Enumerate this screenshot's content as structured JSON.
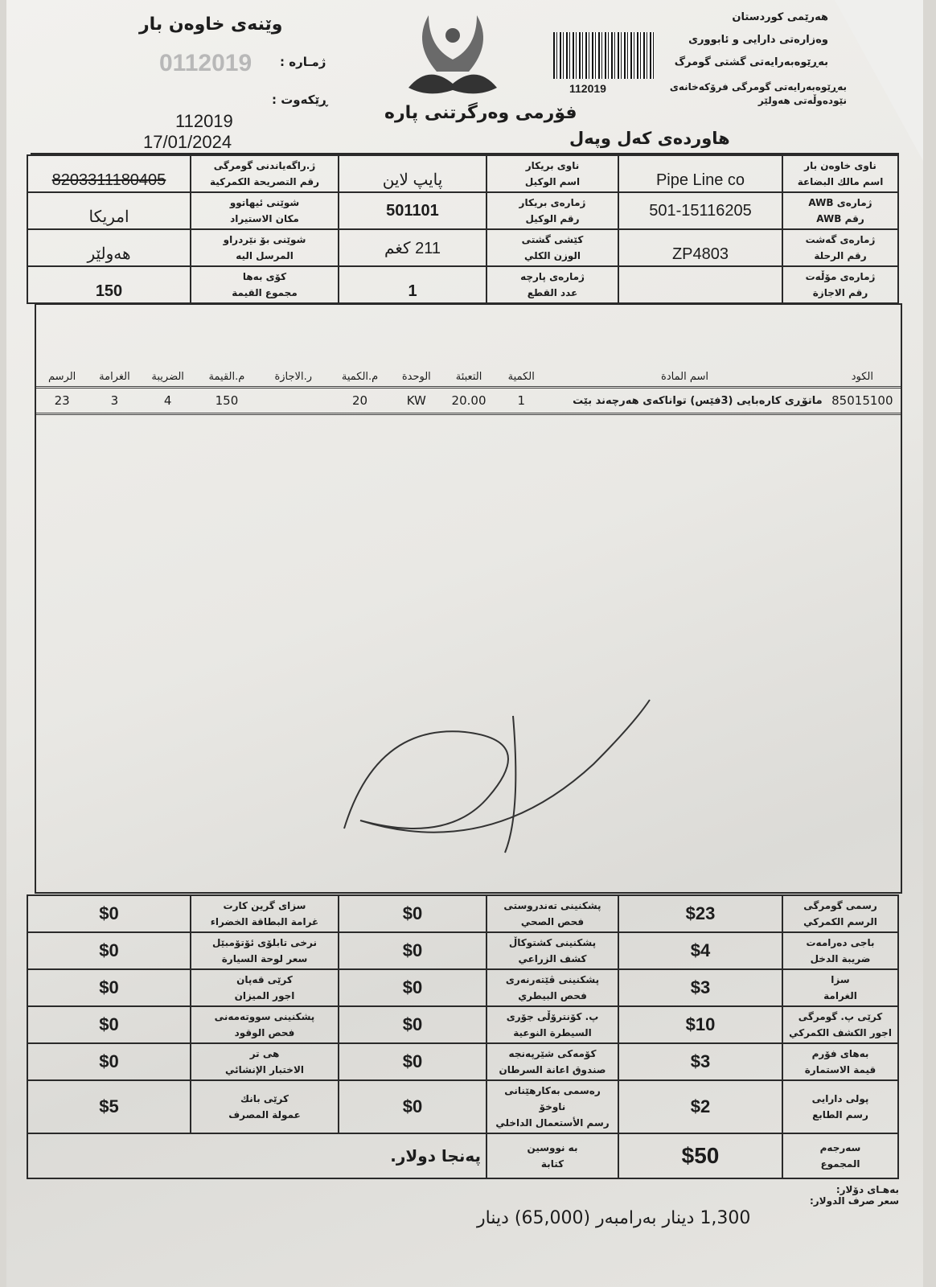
{
  "header": {
    "left_title": "وێنەی خاوەن بار",
    "number_label": "ژمـارە :",
    "number_value": "0112019",
    "date_label": "ڕێکەوت :",
    "ref_number": "112019",
    "date": "17/01/2024",
    "form_title": "فۆرمی وەرگرتنی پارە",
    "subtitle": "هاوردەی کەل وپەل",
    "barcode_number": "112019",
    "org_lines": [
      "هەرێمی کوردستان",
      "وەزارەتی دارایی و ئابووری",
      "بەڕێوەبەرایەتی گشتی گومرگ",
      "بەڕێوەبەرایەتی گومرگی فرۆکەخانەی نێودەوڵەتی هەولێر"
    ]
  },
  "info": {
    "owner": {
      "ku": "ناوی خاوەن بار",
      "ar": "اسم مالك البضاعة",
      "value": "Pipe Line co"
    },
    "awb": {
      "ku": "ژمارەی AWB",
      "ar": "رقم AWB",
      "value": "501-15116205"
    },
    "flight": {
      "ku": "ژمارەی گەشت",
      "ar": "رقم الرحلة",
      "value": "ZP4803"
    },
    "license": {
      "ku": "ژمارەی مۆڵەت",
      "ar": "رقم الاجازة",
      "value": ""
    },
    "agent": {
      "ku": "ناوی بریکار",
      "ar": "اسم الوكيل",
      "value": "پایپ لاین"
    },
    "agent_no": {
      "ku": "ژمارەی بریکار",
      "ar": "رقم الوكيل",
      "value": "501101"
    },
    "weight": {
      "ku": "کێشی گشتی",
      "ar": "الوزن الكلي",
      "value": "211 کغم"
    },
    "pieces": {
      "ku": "ژمارەی پارچە",
      "ar": "عدد القطع",
      "value": "1"
    },
    "declaration": {
      "ku": "ژ.راگەیاندنی گومرگی",
      "ar": "رقم التصريحة الكمركية",
      "value": "8203311180405"
    },
    "origin": {
      "ku": "شوێنی ئیهاتوو",
      "ar": "مكان الاستيراد",
      "value": "امریکا"
    },
    "destination": {
      "ku": "شوێنی بۆ نێردراو",
      "ar": "المرسل اليه",
      "value": "هەولێر"
    },
    "total_value": {
      "ku": "کۆی بەها",
      "ar": "مجموع القيمة",
      "value": "150"
    }
  },
  "items": {
    "headers": [
      "الكود",
      "اسم المادة",
      "الكمية",
      "التعبئة",
      "الوحدة",
      "م.الكمية",
      "ر.الاجازة",
      "م.القيمة",
      "الضريبة",
      "الغرامة",
      "الرسم"
    ],
    "rows": [
      [
        "85015100",
        "ماتۆڕی کارەبایی (3فێس) تواناکەی هەرچەند بێت",
        "1",
        "20.00",
        "KW",
        "20",
        "",
        "150",
        "4",
        "3",
        "23"
      ]
    ]
  },
  "fees": [
    [
      {
        "ku": "رسمی گومرگی",
        "ar": "الرسم الكمركي",
        "v": "$23"
      },
      {
        "ku": "پشکنینی تەندروستی",
        "ar": "فحص الصحي",
        "v": "$0"
      },
      {
        "ku": "سزای گرین کارت",
        "ar": "غرامة البطاقة الخضراء",
        "v": "$0"
      }
    ],
    [
      {
        "ku": "باجی دەرامەت",
        "ar": "ضريبة الدخل",
        "v": "$4"
      },
      {
        "ku": "پشکنینی کشتوکاڵ",
        "ar": "كشف الزراعي",
        "v": "$0"
      },
      {
        "ku": "نرخی تابلۆی ئۆتۆمبێل",
        "ar": "سعر لوحة السيارة",
        "v": "$0"
      }
    ],
    [
      {
        "ku": "سزا",
        "ar": "الغرامة",
        "v": "$3"
      },
      {
        "ku": "پشکنینی ڤێتەرنەری",
        "ar": "فحص البيطري",
        "v": "$0"
      },
      {
        "ku": "کرێی قەپان",
        "ar": "اجور الميزان",
        "v": "$0"
      }
    ],
    [
      {
        "ku": "کرێی پ. گومرگی",
        "ar": "اجور الكشف الكمركي",
        "v": "$10"
      },
      {
        "ku": "پ. کۆنترۆڵی جۆری",
        "ar": "السيطرة النوعية",
        "v": "$0"
      },
      {
        "ku": "پشکنینی سووتەمەنی",
        "ar": "فحص الوقود",
        "v": "$0"
      }
    ],
    [
      {
        "ku": "بەهای فۆرم",
        "ar": "قيمة الاستمارة",
        "v": "$3"
      },
      {
        "ku": "کۆمەکی شێرپەنجە",
        "ar": "صندوق اعانة السرطان",
        "v": "$0"
      },
      {
        "ku": "هی تر",
        "ar": "الاختبار الإنشائي",
        "v": "$0"
      }
    ],
    [
      {
        "ku": "پولی دارایی",
        "ar": "رسم الطابع",
        "v": "$2"
      },
      {
        "ku": "رەسمی بەکارهێنانی ناوخۆ",
        "ar": "رسم الأستعمال الداخلي",
        "v": "$0"
      },
      {
        "ku": "کرێی بانك",
        "ar": "عمولة المصرف",
        "v": "$5"
      }
    ]
  ],
  "total": {
    "ku": "سەرجەم",
    "ar": "المجموع",
    "value": "$50",
    "words_ku": "بە نووسین",
    "words_ar": "كتابة",
    "words_value": "پەنجا دولار."
  },
  "exchange": {
    "ku": "بەهـای دۆلار:",
    "ar": "سعر صرف الدولار:",
    "rate": "1,300 دینار",
    "equiv_label": "بەرامبەر",
    "equiv": "(65,000) دینار"
  }
}
